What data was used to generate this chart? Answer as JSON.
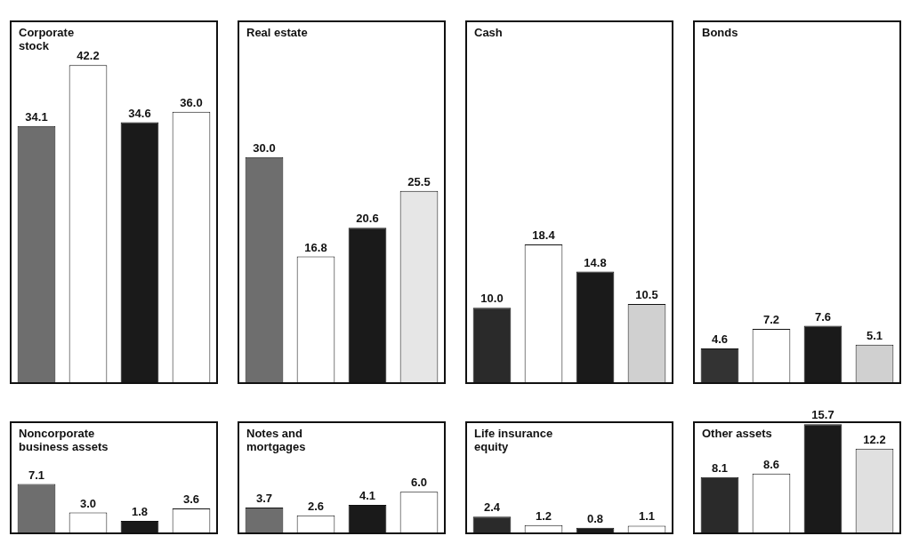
{
  "chart_data": [
    {
      "type": "bar",
      "title": "Corporate\nstock",
      "categories": [
        null,
        null,
        null,
        null
      ],
      "values": [
        34.1,
        42.2,
        34.6,
        36.0
      ],
      "value_labels": [
        "34.1",
        "42.2",
        "34.6",
        "36.0"
      ],
      "colors": [
        "#6e6e6e",
        "#ffffff",
        "#1a1a1a",
        "#ffffff"
      ],
      "ylim": [
        0,
        48
      ]
    },
    {
      "type": "bar",
      "title": "Real estate",
      "categories": [
        null,
        null,
        null,
        null
      ],
      "values": [
        30.0,
        16.8,
        20.6,
        25.5
      ],
      "value_labels": [
        "30.0",
        "16.8",
        "20.6",
        "25.5"
      ],
      "colors": [
        "#6e6e6e",
        "#ffffff",
        "#1a1a1a",
        "#e6e6e6"
      ],
      "ylim": [
        0,
        48
      ]
    },
    {
      "type": "bar",
      "title": "Cash",
      "categories": [
        null,
        null,
        null,
        null
      ],
      "values": [
        10.0,
        18.4,
        14.8,
        10.5
      ],
      "value_labels": [
        "10.0",
        "18.4",
        "14.8",
        "10.5"
      ],
      "colors": [
        "#2a2a2a",
        "#ffffff",
        "#1a1a1a",
        "#d0d0d0"
      ],
      "ylim": [
        0,
        48
      ]
    },
    {
      "type": "bar",
      "title": "Bonds",
      "categories": [
        null,
        null,
        null,
        null
      ],
      "values": [
        4.6,
        7.2,
        7.6,
        5.1
      ],
      "value_labels": [
        "4.6",
        "7.2",
        "7.6",
        "5.1"
      ],
      "colors": [
        "#333333",
        "#ffffff",
        "#1a1a1a",
        "#d0d0d0"
      ],
      "ylim": [
        0,
        48
      ]
    },
    {
      "type": "bar",
      "title": "Noncorporate\nbusiness assets",
      "categories": [
        null,
        null,
        null,
        null
      ],
      "values": [
        7.1,
        3.0,
        1.8,
        3.6
      ],
      "value_labels": [
        "7.1",
        "3.0",
        "1.8",
        "3.6"
      ],
      "colors": [
        "#6e6e6e",
        "#ffffff",
        "#1a1a1a",
        "#ffffff"
      ],
      "ylim": [
        0,
        16
      ]
    },
    {
      "type": "bar",
      "title": "Notes and\nmortgages",
      "categories": [
        null,
        null,
        null,
        null
      ],
      "values": [
        3.7,
        2.6,
        4.1,
        6.0
      ],
      "value_labels": [
        "3.7",
        "2.6",
        "4.1",
        "6.0"
      ],
      "colors": [
        "#6e6e6e",
        "#ffffff",
        "#1a1a1a",
        "#ffffff"
      ],
      "ylim": [
        0,
        16
      ]
    },
    {
      "type": "bar",
      "title": "Life insurance\nequity",
      "categories": [
        null,
        null,
        null,
        null
      ],
      "values": [
        2.4,
        1.2,
        0.8,
        1.1
      ],
      "value_labels": [
        "2.4",
        "1.2",
        "0.8",
        "1.1"
      ],
      "colors": [
        "#2a2a2a",
        "#ffffff",
        "#1a1a1a",
        "#ffffff"
      ],
      "ylim": [
        0,
        16
      ]
    },
    {
      "type": "bar",
      "title": "Other assets",
      "categories": [
        null,
        null,
        null,
        null
      ],
      "values": [
        8.1,
        8.6,
        15.7,
        12.2
      ],
      "value_labels": [
        "8.1",
        "8.6",
        "15.7",
        "12.2"
      ],
      "colors": [
        "#2a2a2a",
        "#ffffff",
        "#1a1a1a",
        "#e0e0e0"
      ],
      "ylim": [
        0,
        16
      ]
    }
  ]
}
